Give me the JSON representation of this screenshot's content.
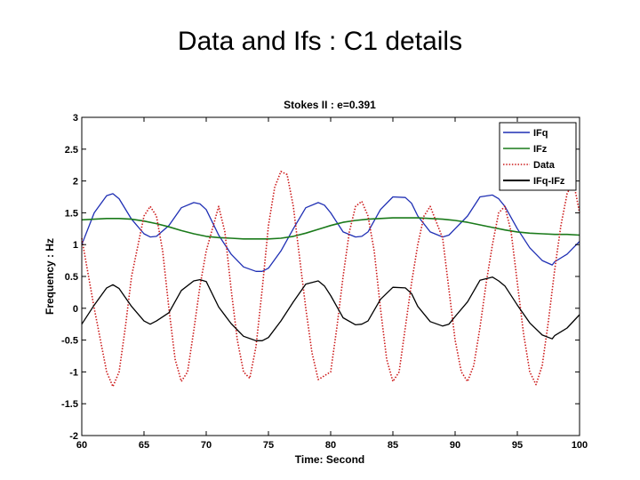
{
  "slide": {
    "title": "Data and Ifs : C1 details"
  },
  "chart_data": {
    "type": "line",
    "title": "Stokes II : e=0.391",
    "xlabel": "Time: Second",
    "ylabel": "Frequency : Hz",
    "xlim": [
      60,
      100
    ],
    "ylim": [
      -2,
      3
    ],
    "xticks": [
      60,
      65,
      70,
      75,
      80,
      85,
      90,
      95,
      100
    ],
    "xtick_labels": [
      "60",
      "65",
      "70",
      "75",
      "80",
      "85",
      "90",
      "95",
      "100"
    ],
    "yticks": [
      -2,
      -1.5,
      -1,
      -0.5,
      0,
      0.5,
      1,
      1.5,
      2,
      2.5,
      3
    ],
    "ytick_labels": [
      "-2",
      "-1.5",
      "-1",
      "-0.5",
      "0",
      "0.5",
      "1",
      "1.5",
      "2",
      "2.5",
      "3"
    ],
    "grid": false,
    "legend_position": "top-right",
    "series": [
      {
        "name": "IFq",
        "color": "#1f2fb4",
        "style": "solid",
        "x": [
          60,
          61,
          62,
          62.5,
          63,
          64,
          65,
          65.5,
          66,
          67,
          68,
          69,
          69.5,
          70,
          71,
          72,
          73,
          74,
          74.5,
          75,
          76,
          77,
          78,
          79,
          79.5,
          80,
          81,
          82,
          82.5,
          83,
          84,
          85,
          86,
          86.5,
          87,
          88,
          89,
          89.5,
          90,
          91,
          92,
          93,
          93.5,
          94,
          95,
          96,
          97,
          97.8,
          98,
          99,
          100
        ],
        "values": [
          1.0,
          1.5,
          1.77,
          1.8,
          1.72,
          1.4,
          1.17,
          1.12,
          1.13,
          1.3,
          1.58,
          1.66,
          1.64,
          1.55,
          1.15,
          0.85,
          0.65,
          0.58,
          0.58,
          0.63,
          0.9,
          1.25,
          1.58,
          1.66,
          1.62,
          1.5,
          1.2,
          1.12,
          1.13,
          1.2,
          1.55,
          1.75,
          1.74,
          1.65,
          1.45,
          1.2,
          1.12,
          1.15,
          1.25,
          1.45,
          1.75,
          1.78,
          1.72,
          1.6,
          1.25,
          0.95,
          0.75,
          0.68,
          0.73,
          0.85,
          1.05
        ]
      },
      {
        "name": "IFz",
        "color": "#1a7a1a",
        "style": "solid",
        "x": [
          60,
          61,
          62,
          63,
          64,
          65,
          66,
          67,
          68,
          69,
          70,
          71,
          72,
          73,
          74,
          75,
          76,
          77,
          78,
          79,
          80,
          81,
          82,
          83,
          84,
          85,
          86,
          87,
          88,
          89,
          90,
          91,
          92,
          93,
          94,
          95,
          96,
          97,
          98,
          99,
          100
        ],
        "values": [
          1.39,
          1.4,
          1.41,
          1.41,
          1.4,
          1.37,
          1.33,
          1.28,
          1.22,
          1.17,
          1.13,
          1.11,
          1.1,
          1.09,
          1.09,
          1.09,
          1.1,
          1.13,
          1.18,
          1.24,
          1.3,
          1.35,
          1.38,
          1.4,
          1.41,
          1.42,
          1.42,
          1.42,
          1.41,
          1.4,
          1.38,
          1.35,
          1.31,
          1.27,
          1.23,
          1.2,
          1.18,
          1.17,
          1.16,
          1.16,
          1.15
        ]
      },
      {
        "name": "Data",
        "color": "#cc1a1a",
        "style": "dotted",
        "x": [
          60,
          61,
          62,
          62.5,
          63,
          63.5,
          64,
          65,
          65.5,
          66,
          66.5,
          67,
          67.5,
          68,
          68.5,
          69,
          69.5,
          70,
          71,
          71.5,
          72,
          72.5,
          73,
          73.5,
          74,
          74.5,
          75,
          75.5,
          76,
          76.5,
          77,
          77.5,
          78,
          78.5,
          79,
          80,
          80.5,
          81,
          81.5,
          82,
          82.5,
          83,
          83.5,
          84,
          84.5,
          85,
          85.5,
          86,
          86.5,
          87,
          87.5,
          88,
          89,
          89.5,
          90,
          90.5,
          91,
          91.5,
          92,
          92.5,
          93,
          93.5,
          94,
          94.5,
          95,
          95.5,
          96,
          96.5,
          97,
          97.5,
          98,
          98.5,
          99,
          99.5,
          100
        ],
        "values": [
          1.1,
          0.0,
          -1.0,
          -1.23,
          -1.0,
          -0.3,
          0.5,
          1.45,
          1.6,
          1.45,
          0.9,
          0.0,
          -0.8,
          -1.15,
          -1.0,
          -0.35,
          0.35,
          0.9,
          1.6,
          1.2,
          0.3,
          -0.5,
          -1.0,
          -1.1,
          -0.6,
          0.3,
          1.3,
          1.9,
          2.15,
          2.1,
          1.6,
          0.8,
          0.0,
          -0.7,
          -1.12,
          -1.0,
          -0.3,
          0.5,
          1.2,
          1.6,
          1.68,
          1.45,
          0.9,
          0.0,
          -0.8,
          -1.15,
          -1.0,
          -0.3,
          0.4,
          1.0,
          1.45,
          1.6,
          1.1,
          0.3,
          -0.5,
          -1.0,
          -1.15,
          -0.9,
          -0.3,
          0.4,
          1.0,
          1.5,
          1.6,
          1.2,
          0.4,
          -0.4,
          -1.0,
          -1.2,
          -0.9,
          -0.2,
          0.6,
          1.3,
          1.8,
          2.0,
          1.5
        ]
      },
      {
        "name": "IFq-IFz",
        "color": "#000000",
        "style": "solid",
        "x": [
          60,
          61,
          62,
          62.5,
          63,
          64,
          65,
          65.5,
          66,
          67,
          68,
          69,
          69.5,
          70,
          71,
          72,
          73,
          74,
          74.5,
          75,
          76,
          77,
          78,
          79,
          79.5,
          80,
          81,
          82,
          82.5,
          83,
          84,
          85,
          86,
          86.5,
          87,
          88,
          89,
          89.5,
          90,
          91,
          92,
          93,
          93.5,
          94,
          95,
          96,
          97,
          97.8,
          98,
          99,
          100
        ],
        "values": [
          -0.25,
          0.05,
          0.32,
          0.37,
          0.31,
          0.03,
          -0.2,
          -0.25,
          -0.2,
          -0.07,
          0.28,
          0.43,
          0.45,
          0.42,
          0.02,
          -0.24,
          -0.44,
          -0.51,
          -0.51,
          -0.46,
          -0.2,
          0.1,
          0.38,
          0.43,
          0.35,
          0.2,
          -0.15,
          -0.26,
          -0.25,
          -0.2,
          0.14,
          0.33,
          0.32,
          0.23,
          0.03,
          -0.21,
          -0.28,
          -0.25,
          -0.13,
          0.1,
          0.44,
          0.49,
          0.43,
          0.35,
          0.05,
          -0.23,
          -0.42,
          -0.48,
          -0.43,
          -0.31,
          -0.1
        ]
      }
    ]
  }
}
